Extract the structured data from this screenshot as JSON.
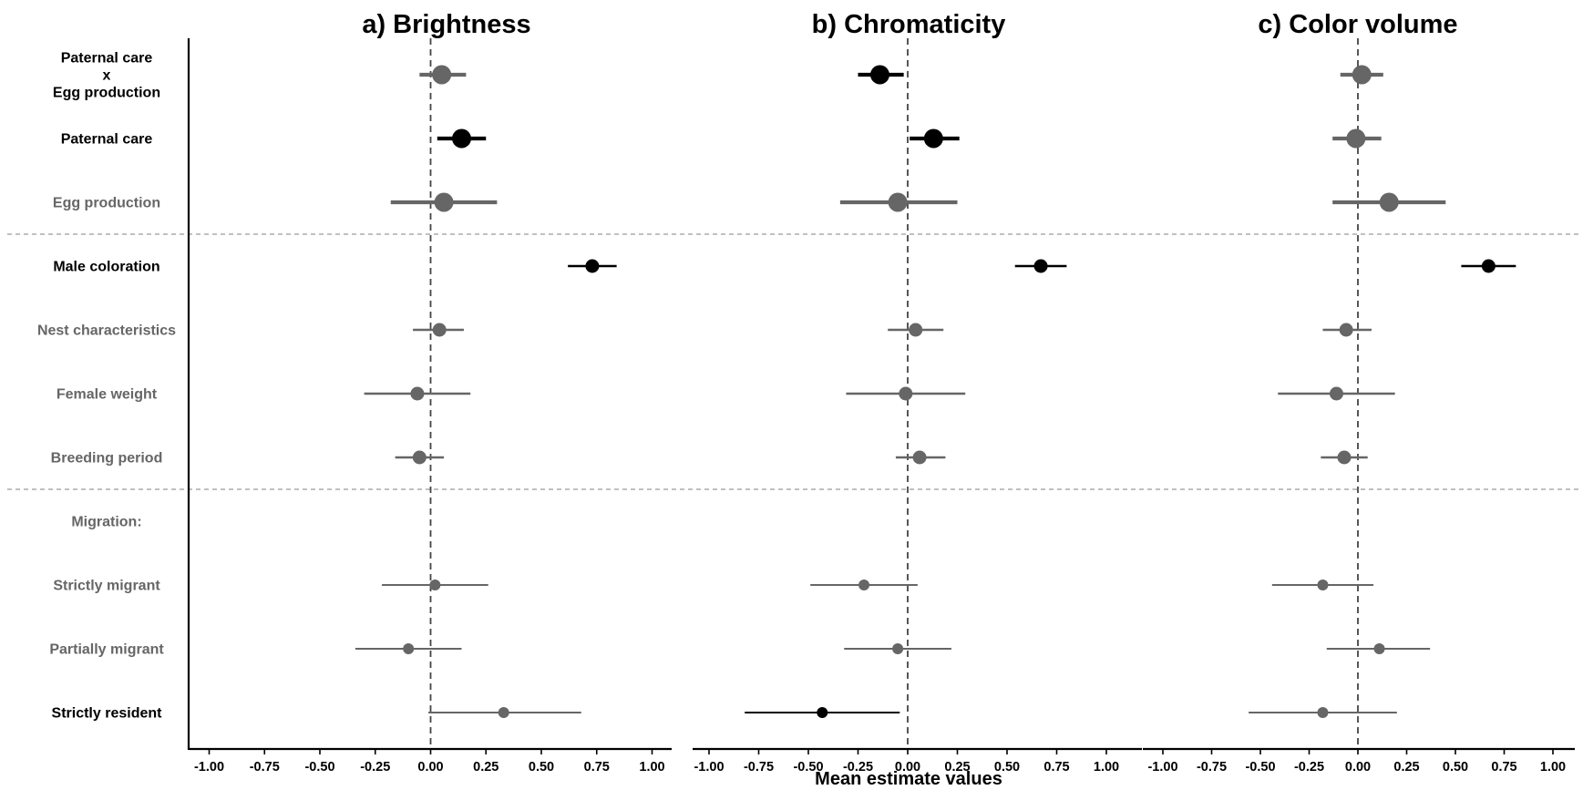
{
  "chart_data": {
    "type": "scatter",
    "xlabel": "Mean estimate values",
    "xlim": [
      -1.0,
      1.0
    ],
    "x_ticks": [
      "-1.00",
      "-0.75",
      "-0.50",
      "-0.25",
      "0.00",
      "0.25",
      "0.50",
      "0.75",
      "1.00"
    ],
    "x_tick_values": [
      -1.0,
      -0.75,
      -0.5,
      -0.25,
      0.0,
      0.25,
      0.5,
      0.75,
      1.0
    ],
    "reference_line": 0,
    "colors": {
      "significant": "#000000",
      "nonsignificant": "#666666"
    },
    "rows": [
      {
        "key": "care_x_egg",
        "label_lines": [
          "Paternal care",
          "x",
          "Egg production"
        ],
        "significant_label": true,
        "size": "large"
      },
      {
        "key": "paternal_care",
        "label_lines": [
          "Paternal care"
        ],
        "significant_label": true,
        "size": "large"
      },
      {
        "key": "egg_production",
        "label_lines": [
          "Egg production"
        ],
        "significant_label": false,
        "size": "large"
      },
      {
        "key": "male_coloration",
        "label_lines": [
          "Male coloration"
        ],
        "significant_label": true,
        "size": "medium"
      },
      {
        "key": "nest_characteristics",
        "label_lines": [
          "Nest characteristics"
        ],
        "significant_label": false,
        "size": "medium"
      },
      {
        "key": "female_weight",
        "label_lines": [
          "Female weight"
        ],
        "significant_label": false,
        "size": "medium"
      },
      {
        "key": "breeding_period",
        "label_lines": [
          "Breeding period"
        ],
        "significant_label": false,
        "size": "medium"
      },
      {
        "key": "migration_header",
        "label_lines": [
          "Migration:"
        ],
        "significant_label": false,
        "size": "none"
      },
      {
        "key": "strictly_migrant",
        "label_lines": [
          "Strictly migrant"
        ],
        "significant_label": false,
        "size": "small"
      },
      {
        "key": "partially_migrant",
        "label_lines": [
          "Partially migrant"
        ],
        "significant_label": false,
        "size": "small"
      },
      {
        "key": "strictly_resident",
        "label_lines": [
          "Strictly resident"
        ],
        "significant_label": true,
        "size": "small"
      }
    ],
    "group_separators_after_rows": [
      2,
      6
    ],
    "panels": [
      {
        "title": "a) Brightness",
        "estimates": [
          {
            "row": "care_x_egg",
            "mean": 0.05,
            "lo": -0.05,
            "hi": 0.16,
            "significant": false
          },
          {
            "row": "paternal_care",
            "mean": 0.14,
            "lo": 0.03,
            "hi": 0.25,
            "significant": true
          },
          {
            "row": "egg_production",
            "mean": 0.06,
            "lo": -0.18,
            "hi": 0.3,
            "significant": false
          },
          {
            "row": "male_coloration",
            "mean": 0.73,
            "lo": 0.62,
            "hi": 0.84,
            "significant": true
          },
          {
            "row": "nest_characteristics",
            "mean": 0.04,
            "lo": -0.08,
            "hi": 0.15,
            "significant": false
          },
          {
            "row": "female_weight",
            "mean": -0.06,
            "lo": -0.3,
            "hi": 0.18,
            "significant": false
          },
          {
            "row": "breeding_period",
            "mean": -0.05,
            "lo": -0.16,
            "hi": 0.06,
            "significant": false
          },
          {
            "row": "strictly_migrant",
            "mean": 0.02,
            "lo": -0.22,
            "hi": 0.26,
            "significant": false
          },
          {
            "row": "partially_migrant",
            "mean": -0.1,
            "lo": -0.34,
            "hi": 0.14,
            "significant": false
          },
          {
            "row": "strictly_resident",
            "mean": 0.33,
            "lo": -0.01,
            "hi": 0.68,
            "significant": false
          }
        ]
      },
      {
        "title": "b) Chromaticity",
        "estimates": [
          {
            "row": "care_x_egg",
            "mean": -0.14,
            "lo": -0.25,
            "hi": -0.02,
            "significant": true
          },
          {
            "row": "paternal_care",
            "mean": 0.13,
            "lo": 0.01,
            "hi": 0.26,
            "significant": true
          },
          {
            "row": "egg_production",
            "mean": -0.05,
            "lo": -0.34,
            "hi": 0.25,
            "significant": false
          },
          {
            "row": "male_coloration",
            "mean": 0.67,
            "lo": 0.54,
            "hi": 0.8,
            "significant": true
          },
          {
            "row": "nest_characteristics",
            "mean": 0.04,
            "lo": -0.1,
            "hi": 0.18,
            "significant": false
          },
          {
            "row": "female_weight",
            "mean": -0.01,
            "lo": -0.31,
            "hi": 0.29,
            "significant": false
          },
          {
            "row": "breeding_period",
            "mean": 0.06,
            "lo": -0.06,
            "hi": 0.19,
            "significant": false
          },
          {
            "row": "strictly_migrant",
            "mean": -0.22,
            "lo": -0.49,
            "hi": 0.05,
            "significant": false
          },
          {
            "row": "partially_migrant",
            "mean": -0.05,
            "lo": -0.32,
            "hi": 0.22,
            "significant": false
          },
          {
            "row": "strictly_resident",
            "mean": -0.43,
            "lo": -0.82,
            "hi": -0.04,
            "significant": true
          }
        ]
      },
      {
        "title": "c) Color volume",
        "estimates": [
          {
            "row": "care_x_egg",
            "mean": 0.02,
            "lo": -0.09,
            "hi": 0.13,
            "significant": false
          },
          {
            "row": "paternal_care",
            "mean": -0.01,
            "lo": -0.13,
            "hi": 0.12,
            "significant": false
          },
          {
            "row": "egg_production",
            "mean": 0.16,
            "lo": -0.13,
            "hi": 0.45,
            "significant": false
          },
          {
            "row": "male_coloration",
            "mean": 0.67,
            "lo": 0.53,
            "hi": 0.81,
            "significant": true
          },
          {
            "row": "nest_characteristics",
            "mean": -0.06,
            "lo": -0.18,
            "hi": 0.07,
            "significant": false
          },
          {
            "row": "female_weight",
            "mean": -0.11,
            "lo": -0.41,
            "hi": 0.19,
            "significant": false
          },
          {
            "row": "breeding_period",
            "mean": -0.07,
            "lo": -0.19,
            "hi": 0.05,
            "significant": false
          },
          {
            "row": "strictly_migrant",
            "mean": -0.18,
            "lo": -0.44,
            "hi": 0.08,
            "significant": false
          },
          {
            "row": "partially_migrant",
            "mean": 0.11,
            "lo": -0.16,
            "hi": 0.37,
            "significant": false
          },
          {
            "row": "strictly_resident",
            "mean": -0.18,
            "lo": -0.56,
            "hi": 0.2,
            "significant": false
          }
        ]
      }
    ]
  }
}
